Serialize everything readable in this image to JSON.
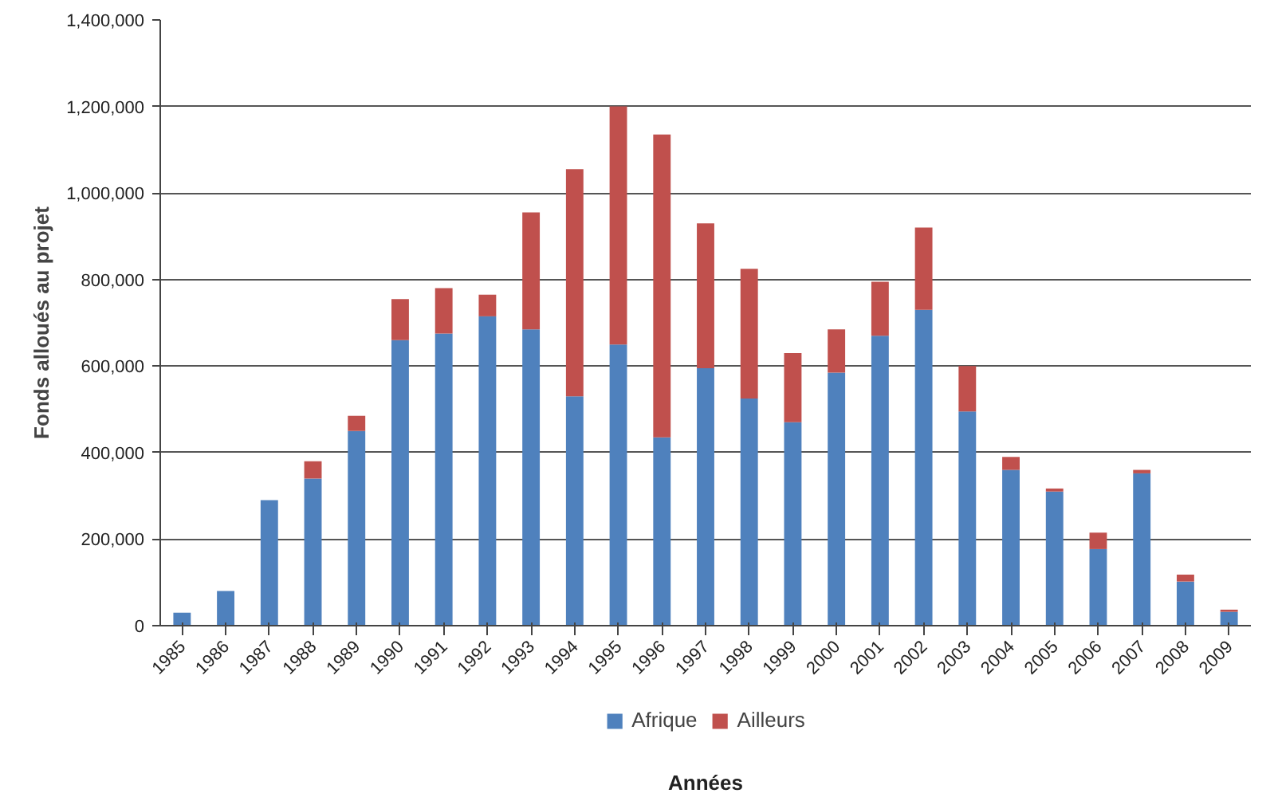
{
  "chart_data": {
    "type": "bar",
    "stacked": true,
    "xlabel": "Années",
    "ylabel": "Fonds alloués au projet",
    "categories": [
      "1985",
      "1986",
      "1987",
      "1988",
      "1989",
      "1990",
      "1991",
      "1992",
      "1993",
      "1994",
      "1995",
      "1996",
      "1997",
      "1998",
      "1999",
      "2000",
      "2001",
      "2002",
      "2003",
      "2004",
      "2005",
      "2006",
      "2007",
      "2008",
      "2009"
    ],
    "series": [
      {
        "name": "Afrique",
        "color": "#4f81bd",
        "values": [
          30000,
          80000,
          290000,
          340000,
          450000,
          660000,
          675000,
          715000,
          685000,
          530000,
          650000,
          435000,
          595000,
          525000,
          470000,
          585000,
          670000,
          730000,
          495000,
          360000,
          310000,
          177000,
          352000,
          102000,
          32000
        ]
      },
      {
        "name": "Ailleurs",
        "color": "#c0504d",
        "values": [
          0,
          0,
          0,
          40000,
          35000,
          95000,
          105000,
          50000,
          270000,
          525000,
          550000,
          700000,
          335000,
          300000,
          160000,
          100000,
          125000,
          190000,
          105000,
          30000,
          7000,
          38000,
          8000,
          16000,
          5000
        ]
      }
    ],
    "ylim": [
      0,
      1400000
    ],
    "yticks": [
      0,
      {
        "value": 200000,
        "label": "200,000"
      },
      {
        "value": 400000,
        "label": "400,000"
      },
      {
        "value": 600000,
        "label": "600,000"
      },
      {
        "value": 800000,
        "label": "800,000"
      },
      {
        "value": 1000000,
        "label": "1,000,000"
      },
      {
        "value": 1200000,
        "label": "1,200,000"
      },
      {
        "value": 1400000,
        "label": "1,400,000"
      }
    ],
    "grid": "y",
    "legend": "bottom"
  }
}
